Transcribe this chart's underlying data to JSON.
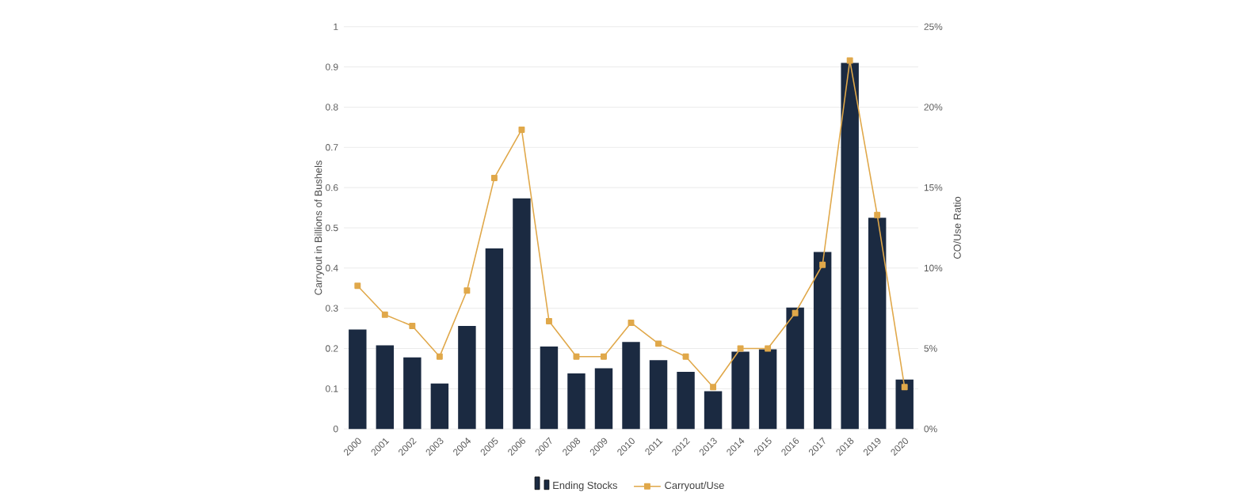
{
  "chart_data": {
    "type": "bar",
    "ylabel": "Carryout in Billions of Bushels",
    "y2label": "CO/Use Ratio",
    "categories": [
      "2000",
      "2001",
      "2002",
      "2003",
      "2004",
      "2005",
      "2006",
      "2007",
      "2008",
      "2009",
      "2010",
      "2011",
      "2012",
      "2013",
      "2014",
      "2015",
      "2016",
      "2017",
      "2018",
      "2019",
      "2020"
    ],
    "series": [
      {
        "name": "Ending Stocks",
        "color": "#1b2a41",
        "values": [
          0.247,
          0.208,
          0.178,
          0.113,
          0.256,
          0.449,
          0.573,
          0.205,
          0.138,
          0.151,
          0.216,
          0.171,
          0.142,
          0.094,
          0.192,
          0.198,
          0.302,
          0.44,
          0.91,
          0.525,
          0.123
        ]
      },
      {
        "name": "Carryout/Use",
        "type": "line",
        "axis": "y2",
        "color": "#e0a84a",
        "marker": "square",
        "values": [
          8.9,
          7.1,
          6.4,
          4.5,
          8.6,
          15.6,
          18.6,
          6.7,
          4.5,
          4.5,
          6.6,
          5.3,
          4.5,
          2.6,
          5.0,
          5.0,
          7.2,
          10.2,
          22.9,
          13.3,
          2.6
        ]
      }
    ],
    "ylim": [
      0,
      1
    ],
    "yticks": [
      0,
      0.1,
      0.2,
      0.3,
      0.4,
      0.5,
      0.6,
      0.7,
      0.8,
      0.9,
      1
    ],
    "y2lim": [
      0,
      25
    ],
    "y2ticks": [
      {
        "value": 0,
        "label": "0%"
      },
      {
        "value": 5,
        "label": "5%"
      },
      {
        "value": 10,
        "label": "10%"
      },
      {
        "value": 15,
        "label": "15%"
      },
      {
        "value": 20,
        "label": "20%"
      },
      {
        "value": 25,
        "label": "25%"
      }
    ],
    "grid": "y",
    "legend": "bottom"
  }
}
